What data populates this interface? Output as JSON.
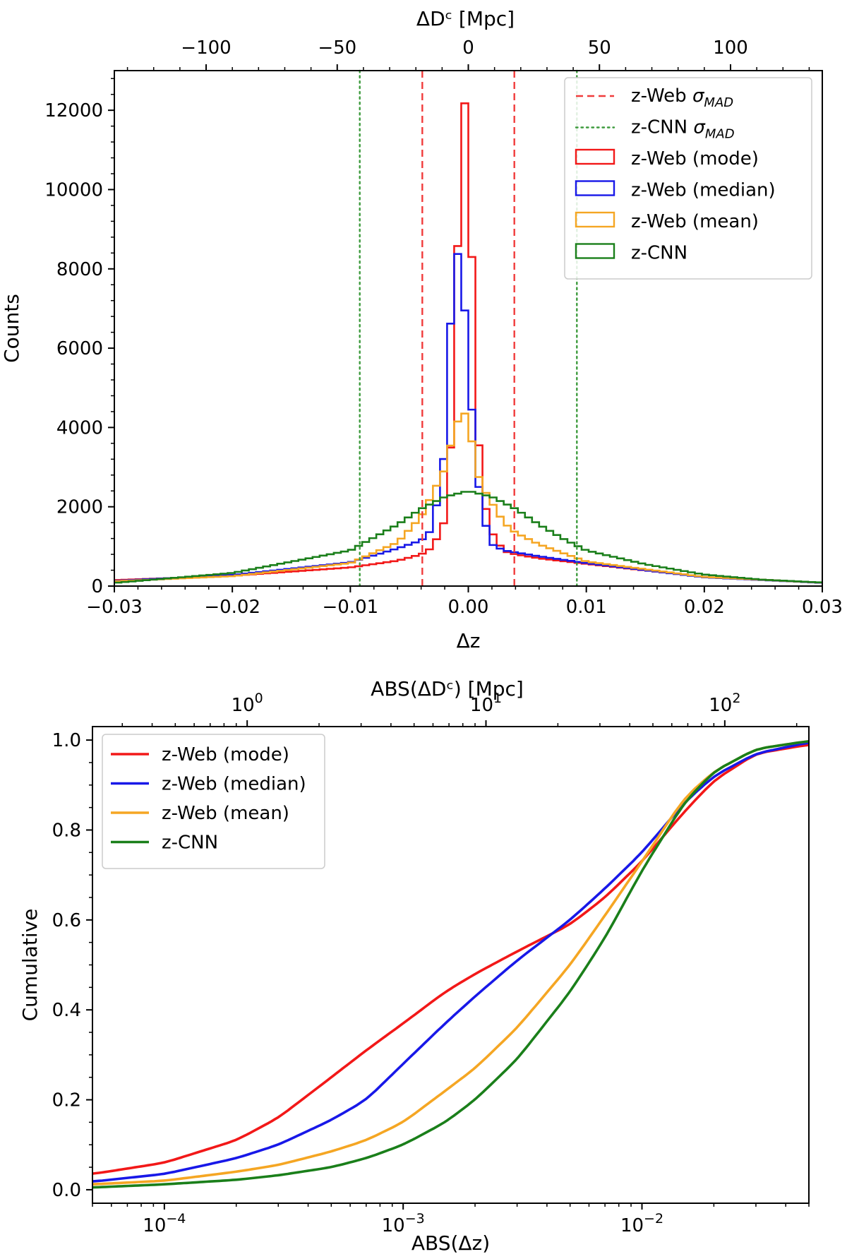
{
  "chart_data": [
    {
      "type": "histogram",
      "title": "",
      "xlabel": "Δz",
      "ylabel": "Counts",
      "top_xlabel": "ΔDᶜ [Mpc]",
      "xlim": [
        -0.03,
        0.03
      ],
      "ylim": [
        0,
        13000
      ],
      "xticks": [
        -0.03,
        -0.02,
        -0.01,
        0.0,
        0.01,
        0.02,
        0.03
      ],
      "xtick_labels": [
        "−0.03",
        "−0.02",
        "−0.01",
        "0.00",
        "0.01",
        "0.02",
        "0.03"
      ],
      "yticks": [
        0,
        2000,
        4000,
        6000,
        8000,
        10000,
        12000
      ],
      "ytick_labels": [
        "0",
        "2000",
        "4000",
        "6000",
        "8000",
        "10000",
        "12000"
      ],
      "top_xticks": [
        -100,
        -50,
        0,
        50,
        100
      ],
      "top_xtick_labels": [
        "−100",
        "−50",
        "0",
        "50",
        "100"
      ],
      "top_axis_mpc_per_dz": 4500,
      "legend_position": "top-right",
      "bins": {
        "start": -0.03,
        "width": 0.0006,
        "count": 100
      },
      "vlines": [
        {
          "name": "z-Web σMAD",
          "label": "z-Web ",
          "label_sub": "σ",
          "label_subscript": "MAD",
          "x": [
            -0.0039,
            0.0039
          ],
          "style": "dashed",
          "color": "#f03c3c"
        },
        {
          "name": "z-CNN σMAD",
          "label": "z-CNN ",
          "label_sub": "σ",
          "label_subscript": "MAD",
          "x": [
            -0.0092,
            0.0092
          ],
          "style": "dotted",
          "color": "#3c9a3c"
        }
      ],
      "series": [
        {
          "name": "z-Web (mode)",
          "color": "#f21818",
          "peak": 12550,
          "core": [
            [
              -0.03,
              150
            ],
            [
              -0.02,
              260
            ],
            [
              -0.01,
              470
            ],
            [
              -0.006,
              640
            ],
            [
              -0.004,
              800
            ],
            [
              -0.003,
              980
            ],
            [
              -0.002,
              1650
            ],
            [
              -0.0012,
              4600
            ],
            [
              -0.0006,
              12550
            ],
            [
              0.0,
              11800
            ],
            [
              0.0006,
              4800
            ],
            [
              0.0012,
              2300
            ],
            [
              0.002,
              1350
            ],
            [
              0.003,
              880
            ],
            [
              0.004,
              800
            ],
            [
              0.006,
              700
            ],
            [
              0.01,
              560
            ],
            [
              0.02,
              230
            ],
            [
              0.03,
              85
            ]
          ]
        },
        {
          "name": "z-Web (median)",
          "color": "#1818e8",
          "peak": 8550,
          "core": [
            [
              -0.03,
              130
            ],
            [
              -0.02,
              280
            ],
            [
              -0.01,
              600
            ],
            [
              -0.006,
              950
            ],
            [
              -0.004,
              1150
            ],
            [
              -0.003,
              1450
            ],
            [
              -0.002,
              3400
            ],
            [
              -0.0012,
              8550
            ],
            [
              -0.0006,
              8200
            ],
            [
              0.0,
              5700
            ],
            [
              0.0006,
              3200
            ],
            [
              0.0012,
              1800
            ],
            [
              0.002,
              1050
            ],
            [
              0.003,
              900
            ],
            [
              0.006,
              750
            ],
            [
              0.01,
              580
            ],
            [
              0.02,
              220
            ],
            [
              0.03,
              80
            ]
          ]
        },
        {
          "name": "z-Web (mean)",
          "color": "#f5a623",
          "peak": 4400,
          "core": [
            [
              -0.03,
              120
            ],
            [
              -0.02,
              250
            ],
            [
              -0.01,
              580
            ],
            [
              -0.006,
              1100
            ],
            [
              -0.004,
              1750
            ],
            [
              -0.003,
              2350
            ],
            [
              -0.002,
              2950
            ],
            [
              -0.0012,
              3900
            ],
            [
              -0.0006,
              4400
            ],
            [
              0.0,
              4300
            ],
            [
              0.0006,
              3000
            ],
            [
              0.0012,
              2500
            ],
            [
              0.002,
              2100
            ],
            [
              0.003,
              1600
            ],
            [
              0.004,
              1350
            ],
            [
              0.006,
              1050
            ],
            [
              0.01,
              620
            ],
            [
              0.02,
              230
            ],
            [
              0.03,
              85
            ]
          ]
        },
        {
          "name": "z-CNN",
          "color": "#1a7f1a",
          "peak": 2400,
          "core": [
            [
              -0.03,
              80
            ],
            [
              -0.02,
              330
            ],
            [
              -0.01,
              900
            ],
            [
              -0.006,
              1550
            ],
            [
              -0.004,
              1950
            ],
            [
              -0.002,
              2250
            ],
            [
              0.0,
              2400
            ],
            [
              0.002,
              2250
            ],
            [
              0.004,
              1950
            ],
            [
              0.006,
              1550
            ],
            [
              0.008,
              1200
            ],
            [
              0.01,
              900
            ],
            [
              0.015,
              550
            ],
            [
              0.02,
              290
            ],
            [
              0.025,
              160
            ],
            [
              0.03,
              90
            ]
          ]
        }
      ]
    },
    {
      "type": "line",
      "title": "",
      "xlabel": "ABS(Δz)",
      "ylabel": "Cumulative",
      "top_xlabel": "ABS(ΔDᶜ) [Mpc]",
      "x_scale": "log",
      "xlim": [
        5e-05,
        0.05
      ],
      "ylim": [
        -0.03,
        1.03
      ],
      "xticks": [
        0.0001,
        0.001,
        0.01
      ],
      "xtick_labels": [
        {
          "base": "10",
          "exp": "−4"
        },
        {
          "base": "10",
          "exp": "−3"
        },
        {
          "base": "10",
          "exp": "−2"
        }
      ],
      "yticks": [
        0.0,
        0.2,
        0.4,
        0.6,
        0.8,
        1.0
      ],
      "ytick_labels": [
        "0.0",
        "0.2",
        "0.4",
        "0.6",
        "0.8",
        "1.0"
      ],
      "top_xticks": [
        1,
        10,
        100
      ],
      "top_xtick_labels": [
        {
          "base": "10",
          "exp": "0"
        },
        {
          "base": "10",
          "exp": "1"
        },
        {
          "base": "10",
          "exp": "2"
        }
      ],
      "top_axis_mpc_per_dz": 4500,
      "legend_position": "top-left",
      "series": [
        {
          "name": "z-Web (mode)",
          "color": "#f21818",
          "x": [
            5e-05,
            0.0001,
            0.0002,
            0.0003,
            0.0005,
            0.0007,
            0.001,
            0.0015,
            0.002,
            0.003,
            0.005,
            0.007,
            0.01,
            0.015,
            0.02,
            0.03,
            0.05
          ],
          "y": [
            0.035,
            0.06,
            0.11,
            0.16,
            0.25,
            0.31,
            0.37,
            0.44,
            0.48,
            0.53,
            0.59,
            0.65,
            0.73,
            0.84,
            0.91,
            0.97,
            0.99
          ]
        },
        {
          "name": "z-Web (median)",
          "color": "#1818e8",
          "x": [
            5e-05,
            0.0001,
            0.0002,
            0.0003,
            0.0005,
            0.0007,
            0.001,
            0.0015,
            0.002,
            0.003,
            0.005,
            0.007,
            0.01,
            0.015,
            0.02,
            0.03,
            0.05
          ],
          "y": [
            0.018,
            0.035,
            0.07,
            0.1,
            0.155,
            0.2,
            0.28,
            0.37,
            0.43,
            0.51,
            0.6,
            0.67,
            0.75,
            0.86,
            0.92,
            0.97,
            0.995
          ]
        },
        {
          "name": "z-Web (mean)",
          "color": "#f5a623",
          "x": [
            5e-05,
            0.0001,
            0.0002,
            0.0003,
            0.0005,
            0.0007,
            0.001,
            0.0015,
            0.002,
            0.003,
            0.005,
            0.007,
            0.01,
            0.015,
            0.02,
            0.03,
            0.05
          ],
          "y": [
            0.012,
            0.02,
            0.04,
            0.055,
            0.085,
            0.11,
            0.15,
            0.22,
            0.27,
            0.36,
            0.5,
            0.61,
            0.73,
            0.87,
            0.93,
            0.98,
            0.998
          ]
        },
        {
          "name": "z-CNN",
          "color": "#1a7f1a",
          "x": [
            5e-05,
            0.0001,
            0.0002,
            0.0003,
            0.0005,
            0.0007,
            0.001,
            0.0015,
            0.002,
            0.003,
            0.005,
            0.007,
            0.01,
            0.015,
            0.02,
            0.03,
            0.05
          ],
          "y": [
            0.005,
            0.012,
            0.022,
            0.032,
            0.05,
            0.07,
            0.1,
            0.15,
            0.2,
            0.29,
            0.44,
            0.56,
            0.71,
            0.86,
            0.93,
            0.98,
            0.998
          ]
        }
      ]
    }
  ]
}
